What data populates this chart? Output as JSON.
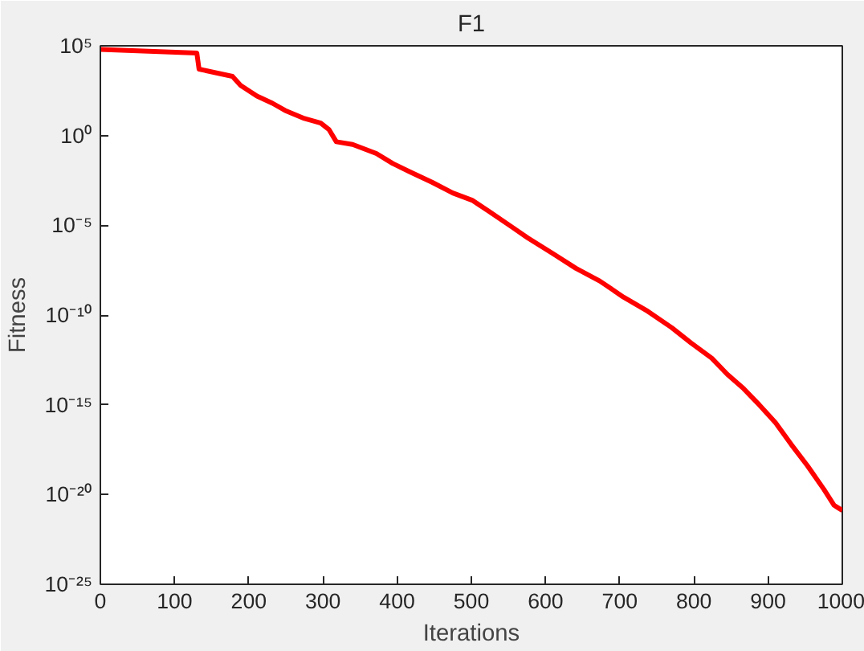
{
  "chart_data": {
    "type": "line",
    "title": "F1",
    "xlabel": "Iterations",
    "ylabel": "Fitness",
    "log": "y",
    "grid": false,
    "marker": "none",
    "line_style": "solid",
    "xlim": [
      0,
      1000
    ],
    "xticks": [
      0,
      100,
      200,
      300,
      400,
      500,
      600,
      700,
      800,
      900,
      1000
    ],
    "ylim": [
      1e-25,
      100000.0
    ],
    "yticks": [
      {
        "value": 1e-25,
        "label": "10⁻²⁵"
      },
      {
        "value": 1e-20,
        "label": "10⁻²⁰"
      },
      {
        "value": 1e-15,
        "label": "10⁻¹⁵"
      },
      {
        "value": 1e-10,
        "label": "10⁻¹⁰"
      },
      {
        "value": 1e-05,
        "label": "10⁻⁵"
      },
      {
        "value": 1,
        "label": "10⁰"
      },
      {
        "value": 100000.0,
        "label": "10⁵"
      }
    ],
    "x": [
      0,
      130,
      133,
      178,
      189,
      211,
      232,
      249,
      275,
      297,
      308,
      318,
      340,
      372,
      394,
      421,
      447,
      475,
      501,
      523,
      555,
      576,
      609,
      641,
      673,
      705,
      738,
      770,
      796,
      824,
      845,
      867,
      888,
      910,
      931,
      953,
      975,
      989,
      1000
    ],
    "series": [
      {
        "color": "#ff0000",
        "values": [
          63000.0,
          40000.0,
          5000.0,
          2000.0,
          630,
          160,
          63,
          25,
          8.9,
          5,
          2.2,
          0.45,
          0.32,
          0.1,
          0.028,
          0.008,
          0.0025,
          0.00063,
          0.00025,
          6.3e-05,
          7.9e-06,
          2e-06,
          2.8e-07,
          4e-08,
          7.9e-09,
          1e-09,
          1.6e-10,
          2e-11,
          2.8e-12,
          4e-13,
          5e-14,
          7.9e-15,
          1e-15,
          1e-16,
          6.3e-18,
          4e-19,
          2e-20,
          2.5e-21,
          1.3e-21
        ]
      }
    ]
  }
}
